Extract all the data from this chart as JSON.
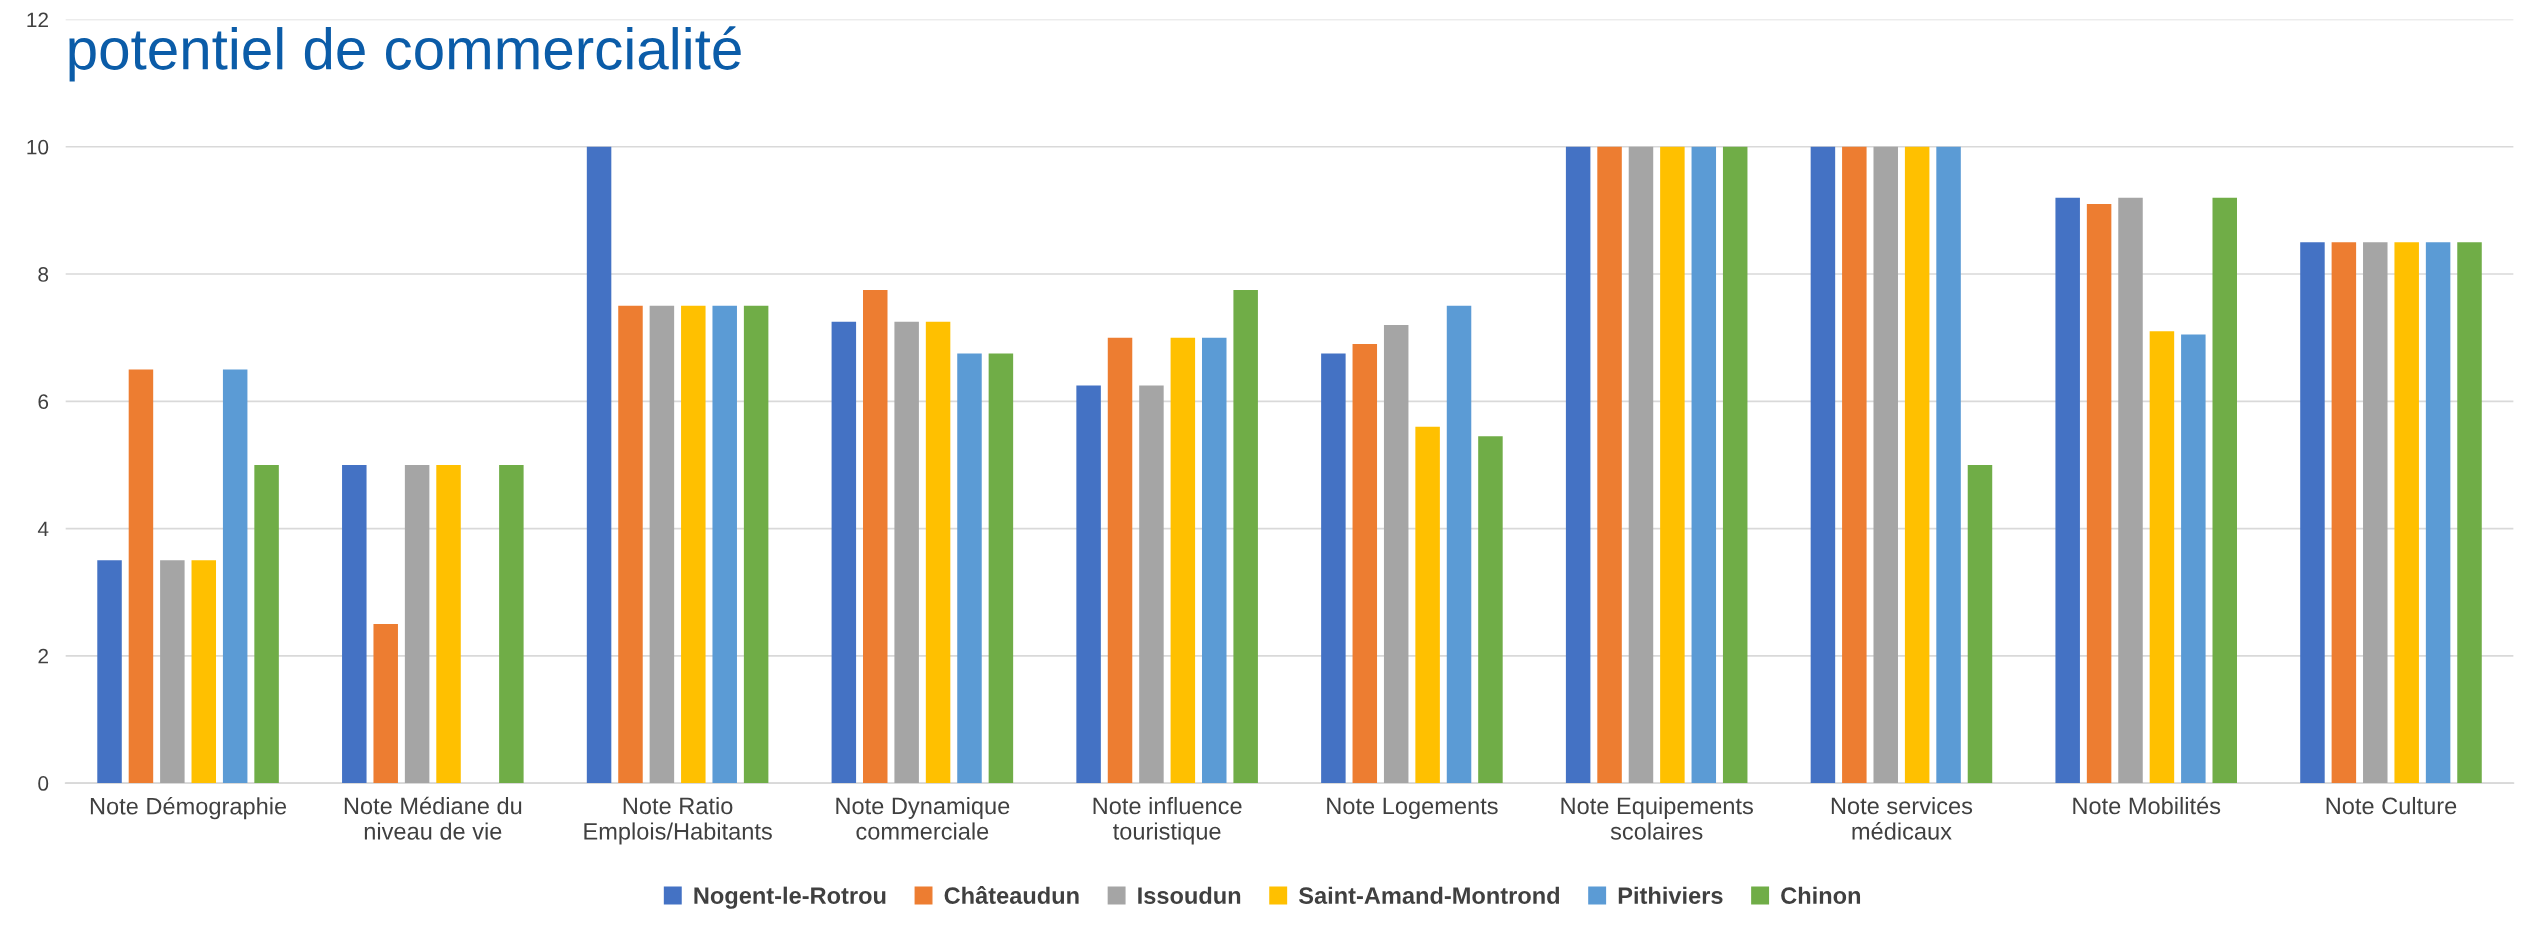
{
  "chart_data": {
    "type": "bar",
    "title": "potentiel de commercialité",
    "categories": [
      "Note Démographie",
      "Note Médiane du\nniveau de vie",
      "Note Ratio\nEmplois/Habitants",
      "Note Dynamique\ncommerciale",
      "Note influence\ntouristique",
      "Note Logements",
      "Note Equipements\nscolaires",
      "Note services\nmédicaux",
      "Note Mobilités",
      "Note Culture"
    ],
    "series": [
      {
        "name": "Nogent-le-Rotrou",
        "color": "#4472c4",
        "values": [
          3.5,
          5,
          10,
          7.25,
          6.25,
          6.75,
          10,
          10,
          9.2,
          8.5
        ]
      },
      {
        "name": "Châteaudun",
        "color": "#ed7d31",
        "values": [
          6.5,
          2.5,
          7.5,
          7.75,
          7,
          6.9,
          10,
          10,
          9.1,
          8.5
        ]
      },
      {
        "name": "Issoudun",
        "color": "#a5a5a5",
        "values": [
          3.5,
          5,
          7.5,
          7.25,
          6.25,
          7.2,
          10,
          10,
          9.2,
          8.5
        ]
      },
      {
        "name": "Saint-Amand-Montrond",
        "color": "#ffc000",
        "values": [
          3.5,
          5,
          7.5,
          7.25,
          7,
          5.6,
          10,
          10,
          7.1,
          8.5
        ]
      },
      {
        "name": "Pithiviers",
        "color": "#5b9bd5",
        "values": [
          6.5,
          null,
          7.5,
          6.75,
          7,
          7.5,
          10,
          10,
          7.05,
          8.5
        ]
      },
      {
        "name": "Chinon",
        "color": "#70ad47",
        "values": [
          5,
          5,
          7.5,
          6.75,
          7.75,
          5.45,
          10,
          5,
          9.2,
          8.5
        ]
      }
    ],
    "ylim": [
      0,
      12
    ],
    "yticks": [
      0,
      2,
      4,
      6,
      8,
      10,
      12
    ],
    "grid": "y",
    "legend": "bottom"
  }
}
